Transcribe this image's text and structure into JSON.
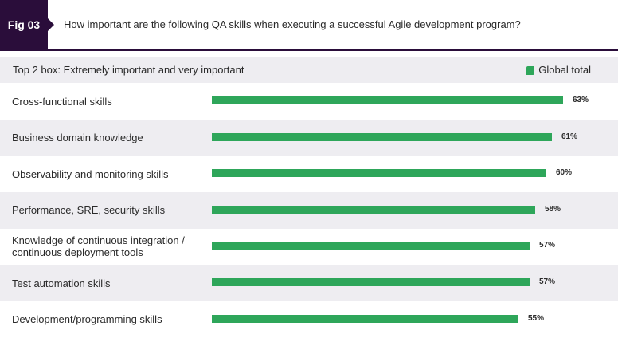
{
  "figure": {
    "tag": "Fig 03",
    "question": "How important are the following QA skills when executing a successful Agile development program?"
  },
  "subheading": "Top 2 box: Extremely important and very important",
  "colors": {
    "accent_dark": "#2a0d3a",
    "bar": "#2ea65a",
    "band": "#eeedf1"
  },
  "chart_data": {
    "type": "bar",
    "orientation": "horizontal",
    "categories": [
      "Cross-functional skills",
      "Business domain knowledge",
      "Observability and monitoring skills",
      "Performance, SRE, security skills",
      "Knowledge of continuous integration / continuous deployment tools",
      "Test automation skills",
      "Development/programming skills"
    ],
    "series": [
      {
        "name": "Global total",
        "values": [
          63,
          61,
          60,
          58,
          57,
          57,
          55
        ]
      }
    ],
    "value_labels": [
      "63%",
      "61%",
      "60%",
      "58%",
      "57%",
      "57%",
      "55%"
    ],
    "legend_position": "top-right",
    "grid": false
  }
}
